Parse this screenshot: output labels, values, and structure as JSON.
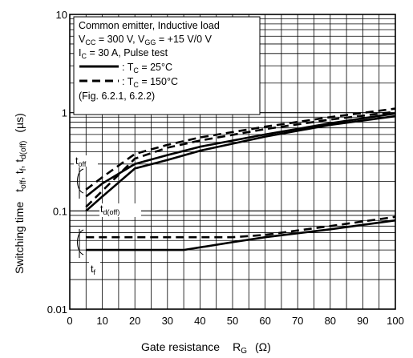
{
  "chart_data": {
    "type": "line",
    "x_scale": "linear",
    "y_scale": "log",
    "xlim": [
      0,
      100
    ],
    "ylim": [
      0.01,
      10
    ],
    "grid": true,
    "x_ticks": [
      "0",
      "10",
      "20",
      "30",
      "40",
      "50",
      "60",
      "70",
      "80",
      "90",
      "100"
    ],
    "y_ticks": [
      "0.01",
      "0.1",
      "1",
      "10"
    ],
    "xlabel": {
      "text": "Gate resistance",
      "symbol": "R",
      "sub": "G",
      "unit": "(Ω)"
    },
    "ylabel": {
      "pre": "Switching time",
      "t1": "t",
      "s1": "off",
      "t2": ", t",
      "s2": "f",
      "t3": ", t",
      "s3": "d(off)",
      "unit": "(µs)"
    },
    "legend": {
      "lines": [
        "Common emitter, Inductive load",
        {
          "a": "V",
          "as": "CC",
          "b": " = 300 V, V",
          "bs": "GG",
          "c": " = +15 V/0 V"
        },
        {
          "a": "I",
          "as": "C",
          "b": " = 30 A, Pulse test"
        },
        "(Fig. 6.2.1, 6.2.2)"
      ],
      "entries": [
        {
          "style": "solid",
          "prefix": ": T",
          "sub": "C",
          "suffix": " = 25°C"
        },
        {
          "style": "dashed",
          "prefix": ": T",
          "sub": "C",
          "suffix": " = 150°C"
        }
      ]
    },
    "curve_labels": [
      {
        "t": "t",
        "s": "off"
      },
      {
        "t": "t",
        "s": "d(off)"
      },
      {
        "t": "t",
        "s": "f"
      }
    ],
    "series": [
      {
        "label": "t_off",
        "style": "solid",
        "x": [
          5,
          10,
          20,
          30,
          40,
          60,
          80,
          100
        ],
        "y": [
          0.14,
          0.19,
          0.3,
          0.37,
          0.45,
          0.6,
          0.78,
          0.98
        ]
      },
      {
        "label": "t_off",
        "style": "dashed",
        "x": [
          5,
          10,
          20,
          30,
          40,
          60,
          80,
          100
        ],
        "y": [
          0.165,
          0.22,
          0.38,
          0.47,
          0.56,
          0.72,
          0.9,
          1.1
        ]
      },
      {
        "label": "t_d(off)",
        "style": "solid",
        "x": [
          5,
          10,
          20,
          30,
          40,
          60,
          80,
          100
        ],
        "y": [
          0.1,
          0.14,
          0.27,
          0.33,
          0.41,
          0.57,
          0.75,
          0.92
        ]
      },
      {
        "label": "t_d(off)",
        "style": "dashed",
        "x": [
          5,
          10,
          20,
          30,
          40,
          60,
          80,
          100
        ],
        "y": [
          0.11,
          0.16,
          0.34,
          0.44,
          0.52,
          0.68,
          0.85,
          1.02
        ]
      },
      {
        "label": "t_f",
        "style": "solid",
        "x": [
          5,
          10,
          20,
          30,
          35,
          50,
          60,
          80,
          100
        ],
        "y": [
          0.04,
          0.04,
          0.04,
          0.04,
          0.04,
          0.048,
          0.054,
          0.065,
          0.08
        ]
      },
      {
        "label": "t_f",
        "style": "dashed",
        "x": [
          5,
          10,
          20,
          30,
          40,
          50,
          60,
          80,
          100
        ],
        "y": [
          0.054,
          0.054,
          0.054,
          0.054,
          0.054,
          0.054,
          0.057,
          0.07,
          0.087
        ]
      }
    ]
  }
}
